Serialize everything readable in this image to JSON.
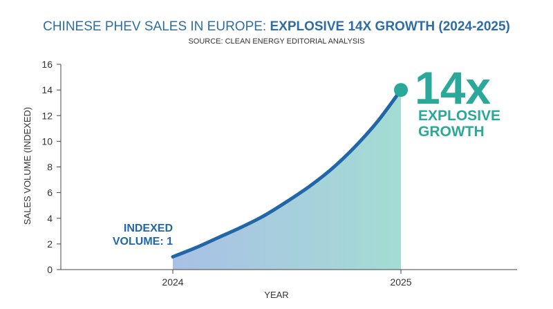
{
  "chart_data": {
    "type": "area",
    "title_regular": "CHINESE PHEV SALES IN EUROPE: ",
    "title_bold": "EXPLOSIVE 14X GROWTH (2024-2025)",
    "subtitle": "SOURCE: CLEAN ENERGY EDITORIAL ANALYSIS",
    "xlabel": "YEAR",
    "ylabel": "SALES VOLUME (INDEXED)",
    "categories": [
      "2024",
      "2025"
    ],
    "y_ticks": [
      "0",
      "2",
      "4",
      "6",
      "8",
      "10",
      "12",
      "14",
      "16"
    ],
    "ylim": [
      0,
      16
    ],
    "curve": [
      {
        "t": 0.0,
        "value": 1.0
      },
      {
        "t": 0.1,
        "value": 1.7
      },
      {
        "t": 0.2,
        "value": 2.5
      },
      {
        "t": 0.3,
        "value": 3.3
      },
      {
        "t": 0.4,
        "value": 4.2
      },
      {
        "t": 0.5,
        "value": 5.3
      },
      {
        "t": 0.6,
        "value": 6.5
      },
      {
        "t": 0.7,
        "value": 7.9
      },
      {
        "t": 0.8,
        "value": 9.6
      },
      {
        "t": 0.9,
        "value": 11.6
      },
      {
        "t": 1.0,
        "value": 14.0
      }
    ],
    "annotations": {
      "start_line1": "INDEXED",
      "start_line2": "VOLUME: 1",
      "end_big": "14x",
      "end_line1": "EXPLOSIVE",
      "end_line2": "GROWTH"
    },
    "colors": {
      "title": "#2e6da4",
      "line": "#2166a8",
      "fill_start": "#a9c0e6",
      "fill_end": "#a4dcd3",
      "end_marker": "#2aa89a",
      "end_text": "#2aa89a",
      "start_text": "#2166a8",
      "axis": "#444444"
    },
    "grid": false
  }
}
